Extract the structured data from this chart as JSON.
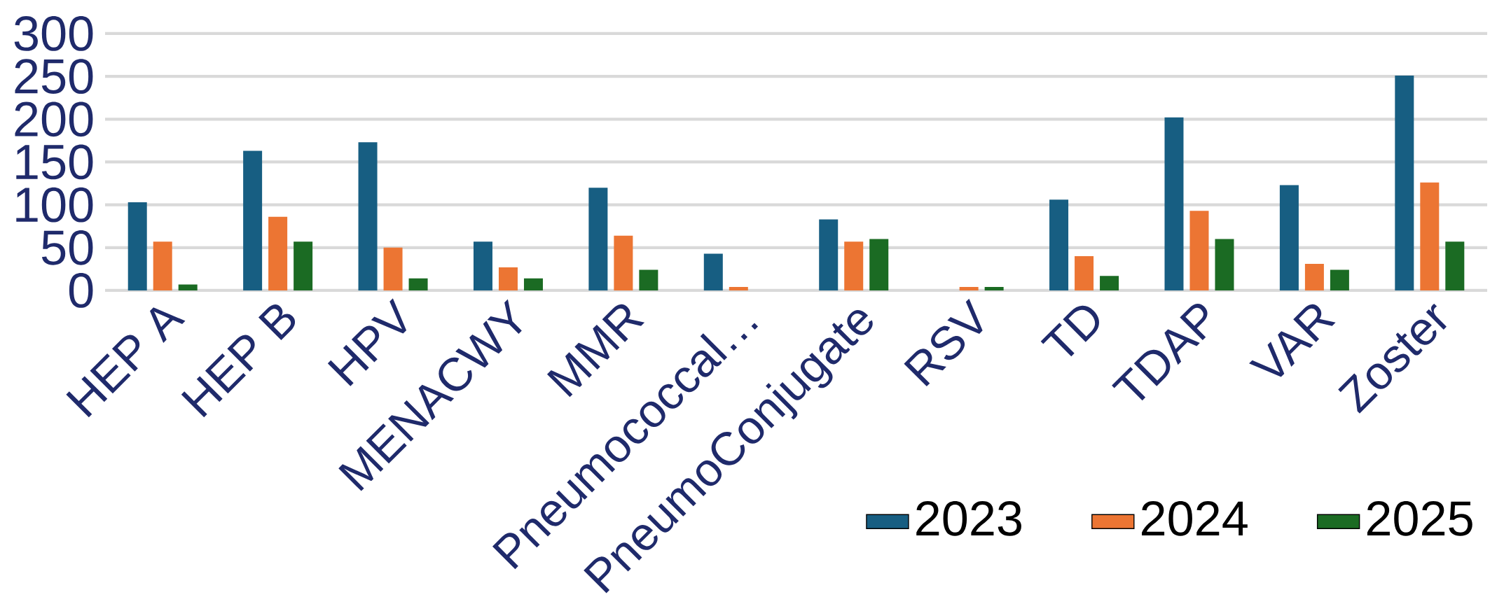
{
  "chart_data": {
    "type": "bar",
    "categories": [
      "HEP A",
      "HEP B",
      "HPV",
      "MENACWY",
      "MMR",
      "Pneumococcal…",
      "PneumoConjugate",
      "RSV",
      "TD",
      "TDAP",
      "VAR",
      "Zoster"
    ],
    "series": [
      {
        "name": "2023",
        "color": "#175e82",
        "values": [
          103,
          163,
          173,
          57,
          120,
          43,
          83,
          null,
          106,
          202,
          123,
          251
        ]
      },
      {
        "name": "2024",
        "color": "#ec7533",
        "values": [
          57,
          86,
          50,
          27,
          64,
          4,
          57,
          4,
          40,
          93,
          31,
          126
        ]
      },
      {
        "name": "2025",
        "color": "#1b6b23",
        "values": [
          7,
          57,
          14,
          14,
          24,
          null,
          60,
          4,
          17,
          60,
          24,
          57
        ]
      }
    ],
    "ylim": [
      0,
      300
    ],
    "yticks": [
      0,
      50,
      100,
      150,
      200,
      250,
      300
    ],
    "grid": "y",
    "legend": "bottom right"
  }
}
